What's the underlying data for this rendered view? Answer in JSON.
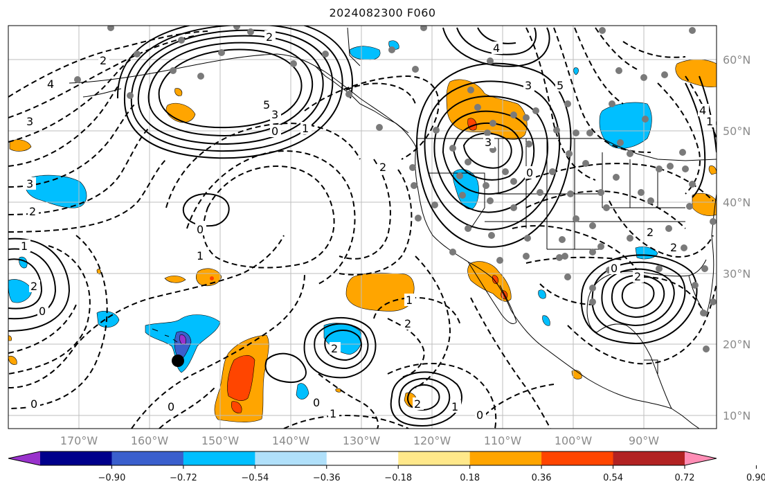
{
  "title": "2024082300 F060",
  "longitude_labels": [
    "170°W",
    "160°W",
    "150°W",
    "140°W",
    "130°W",
    "120°W",
    "110°W",
    "100°W",
    "90°W"
  ],
  "latitude_labels": [
    "60°N",
    "50°N",
    "40°N",
    "30°N",
    "20°N",
    "10°N"
  ],
  "colorbar": {
    "tick_labels": [
      "−0.90",
      "−0.72",
      "−0.54",
      "−0.36",
      "−0.18",
      "0.18",
      "0.36",
      "0.54",
      "0.72",
      "0.90"
    ],
    "colors": [
      "#9932cc",
      "#00008b",
      "#3a5fcd",
      "#00bfff",
      "#b0e0fa",
      "#ffffff",
      "#ffe88a",
      "#ffa500",
      "#ff4500",
      "#b22222",
      "#ff8db5"
    ]
  },
  "contour_labels": [
    {
      "text": "2",
      "id": "c1"
    },
    {
      "text": "4",
      "id": "c2"
    },
    {
      "text": "3",
      "id": "c3"
    },
    {
      "text": "2",
      "id": "c4"
    },
    {
      "text": "3",
      "id": "c5"
    },
    {
      "text": "5",
      "id": "c6"
    },
    {
      "text": "4",
      "id": "c7"
    },
    {
      "text": "0",
      "id": "c8"
    },
    {
      "text": "1",
      "id": "c9"
    },
    {
      "text": "2",
      "id": "c10"
    },
    {
      "text": "4",
      "id": "c11"
    },
    {
      "text": "3",
      "id": "c12"
    },
    {
      "text": "5",
      "id": "c13"
    },
    {
      "text": "2",
      "id": "c14"
    },
    {
      "text": "0",
      "id": "c15"
    },
    {
      "text": "3",
      "id": "c16"
    },
    {
      "text": "2",
      "id": "c17"
    },
    {
      "text": "0",
      "id": "c18"
    },
    {
      "text": "1",
      "id": "c19"
    },
    {
      "text": "0",
      "id": "c20"
    },
    {
      "text": "2",
      "id": "c21"
    },
    {
      "text": "1",
      "id": "c22"
    },
    {
      "text": "0",
      "id": "c23"
    },
    {
      "text": "2",
      "id": "c24"
    },
    {
      "text": "1",
      "id": "c25"
    },
    {
      "text": "0",
      "id": "c26"
    },
    {
      "text": "2",
      "id": "c27"
    },
    {
      "text": "1",
      "id": "c28"
    },
    {
      "text": "0",
      "id": "c29"
    },
    {
      "text": "2",
      "id": "c30"
    },
    {
      "text": "0",
      "id": "c31"
    },
    {
      "text": "2",
      "id": "c32"
    },
    {
      "text": "1",
      "id": "c33"
    },
    {
      "text": "0",
      "id": "c34"
    },
    {
      "text": "1",
      "id": "c35"
    },
    {
      "text": "2",
      "id": "c36"
    },
    {
      "text": "3",
      "id": "c37"
    }
  ]
}
